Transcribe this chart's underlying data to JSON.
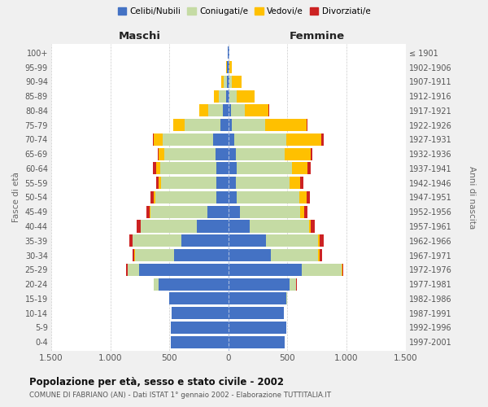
{
  "age_groups": [
    "0-4",
    "5-9",
    "10-14",
    "15-19",
    "20-24",
    "25-29",
    "30-34",
    "35-39",
    "40-44",
    "45-49",
    "50-54",
    "55-59",
    "60-64",
    "65-69",
    "70-74",
    "75-79",
    "80-84",
    "85-89",
    "90-94",
    "95-99",
    "100+"
  ],
  "birth_years": [
    "1997-2001",
    "1992-1996",
    "1987-1991",
    "1982-1986",
    "1977-1981",
    "1972-1976",
    "1967-1971",
    "1962-1966",
    "1957-1961",
    "1952-1956",
    "1947-1951",
    "1942-1946",
    "1937-1941",
    "1932-1936",
    "1927-1931",
    "1922-1926",
    "1917-1921",
    "1912-1916",
    "1907-1911",
    "1902-1906",
    "≤ 1901"
  ],
  "maschi": {
    "celibi": [
      490,
      490,
      480,
      500,
      590,
      760,
      460,
      400,
      270,
      180,
      100,
      100,
      100,
      110,
      130,
      70,
      50,
      20,
      15,
      10,
      5
    ],
    "coniugati": [
      0,
      0,
      0,
      5,
      40,
      90,
      330,
      410,
      470,
      480,
      520,
      470,
      480,
      430,
      430,
      300,
      120,
      60,
      25,
      5,
      2
    ],
    "vedovi": [
      0,
      0,
      0,
      0,
      0,
      5,
      5,
      5,
      5,
      5,
      10,
      20,
      30,
      50,
      70,
      100,
      80,
      40,
      20,
      5,
      1
    ],
    "divorziati": [
      0,
      0,
      0,
      0,
      5,
      10,
      15,
      25,
      30,
      30,
      30,
      25,
      30,
      10,
      10,
      0,
      0,
      0,
      0,
      0,
      0
    ]
  },
  "femmine": {
    "nubili": [
      480,
      490,
      470,
      490,
      520,
      620,
      360,
      320,
      180,
      100,
      70,
      60,
      70,
      60,
      50,
      30,
      20,
      10,
      10,
      5,
      5
    ],
    "coniugate": [
      0,
      0,
      0,
      10,
      50,
      340,
      400,
      440,
      500,
      510,
      530,
      460,
      470,
      420,
      440,
      280,
      120,
      60,
      20,
      5,
      1
    ],
    "vedove": [
      0,
      0,
      0,
      0,
      5,
      5,
      10,
      15,
      20,
      30,
      60,
      90,
      130,
      220,
      300,
      350,
      200,
      150,
      80,
      20,
      3
    ],
    "divorziate": [
      0,
      0,
      0,
      0,
      5,
      10,
      25,
      30,
      30,
      30,
      30,
      25,
      25,
      10,
      15,
      10,
      5,
      0,
      0,
      0,
      0
    ]
  },
  "colors": {
    "celibi": "#4472c4",
    "coniugati": "#c5dba4",
    "vedovi": "#ffc000",
    "divorziati": "#cc2222"
  },
  "xlim": 1500,
  "title": "Popolazione per età, sesso e stato civile - 2002",
  "subtitle": "COMUNE DI FABRIANO (AN) - Dati ISTAT 1° gennaio 2002 - Elaborazione TUTTITALIA.IT",
  "ylabel_left": "Fasce di età",
  "ylabel_right": "Anni di nascita",
  "xlabel_maschi": "Maschi",
  "xlabel_femmine": "Femmine",
  "bg_color": "#f0f0f0",
  "plot_bg": "#ffffff",
  "xtick_labels": [
    "1.500",
    "1.000",
    "500",
    "0",
    "500",
    "1.000",
    "1.500"
  ],
  "xtick_vals": [
    -1500,
    -1000,
    -500,
    0,
    500,
    1000,
    1500
  ]
}
